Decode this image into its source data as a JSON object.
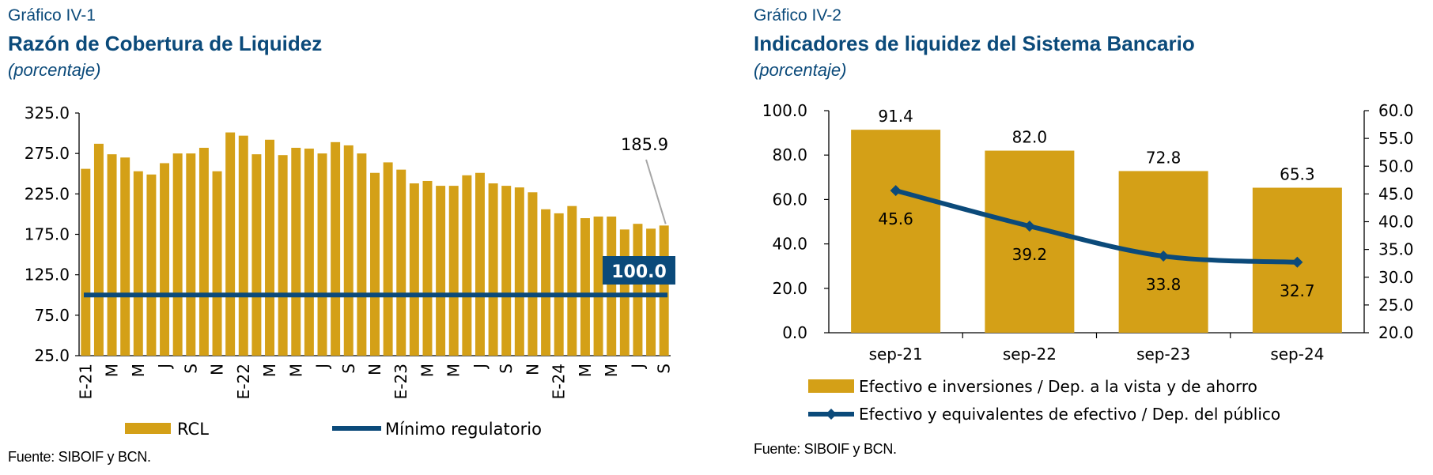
{
  "left": {
    "label": "Gráfico IV-1",
    "title": "Razón de Cobertura de Liquidez",
    "unit": "(porcentaje)",
    "source": "Fuente: SIBOIF y BCN.",
    "chart_data": {
      "type": "bar",
      "ylim": [
        25,
        325
      ],
      "yticks": [
        "325.0",
        "275.0",
        "225.0",
        "175.0",
        "125.0",
        "75.0",
        "25.0"
      ],
      "ytick_values": [
        325,
        275,
        225,
        175,
        125,
        75,
        25
      ],
      "x_tick_labels": [
        "E-21",
        "M",
        "M",
        "J",
        "S",
        "N",
        "E-22",
        "M",
        "M",
        "J",
        "S",
        "N",
        "E-23",
        "M",
        "M",
        "J",
        "S",
        "N",
        "E-24",
        "M",
        "M",
        "J",
        "S"
      ],
      "series": [
        {
          "name": "RCL",
          "type": "bar",
          "color": "#d4a017",
          "values": [
            256,
            287,
            274,
            270,
            253,
            249,
            263,
            275,
            275,
            282,
            253,
            301,
            297,
            274,
            292,
            273,
            282,
            281,
            275,
            289,
            285,
            275,
            251,
            264,
            255,
            238,
            241,
            235,
            235,
            248,
            251,
            238,
            235,
            233,
            227,
            206,
            201,
            210,
            195,
            197,
            197,
            181,
            188,
            182,
            185.9
          ]
        },
        {
          "name": "Mínimo regulatorio",
          "type": "line",
          "color": "#0b4a7a",
          "value": 100
        }
      ],
      "annotations": [
        {
          "text": "185.9",
          "series": "RCL",
          "index": 44
        },
        {
          "text": "100.0",
          "series": "Mínimo regulatorio",
          "style": "boxed"
        }
      ],
      "legend": [
        "RCL",
        "Mínimo regulatorio"
      ],
      "legend_position": "bottom"
    }
  },
  "right": {
    "label": "Gráfico IV-2",
    "title": "Indicadores de liquidez del Sistema Bancario",
    "unit": "(porcentaje)",
    "source": "Fuente: SIBOIF y BCN.",
    "chart_data": {
      "type": "bar",
      "categories": [
        "sep-21",
        "sep-22",
        "sep-23",
        "sep-24"
      ],
      "ylim": [
        0,
        100
      ],
      "yticks": [
        "100.0",
        "80.0",
        "60.0",
        "40.0",
        "20.0",
        "0.0"
      ],
      "ytick_values": [
        100,
        80,
        60,
        40,
        20,
        0
      ],
      "y2lim": [
        20,
        60
      ],
      "y2ticks": [
        "60.0",
        "55.0",
        "50.0",
        "45.0",
        "40.0",
        "35.0",
        "30.0",
        "25.0",
        "20.0"
      ],
      "y2tick_values": [
        60,
        55,
        50,
        45,
        40,
        35,
        30,
        25,
        20
      ],
      "series": [
        {
          "name": "Efectivo e inversiones / Dep. a la vista y de ahorro",
          "type": "bar",
          "axis": "left",
          "color": "#d4a017",
          "values": [
            91.4,
            82.0,
            72.8,
            65.3
          ],
          "labels": [
            "91.4",
            "82.0",
            "72.8",
            "65.3"
          ]
        },
        {
          "name": "Efectivo y equivalentes de efectivo / Dep. del público",
          "type": "line",
          "axis": "right",
          "color": "#0b4a7a",
          "values": [
            45.6,
            39.2,
            33.8,
            32.7
          ],
          "labels": [
            "45.6",
            "39.2",
            "33.8",
            "32.7"
          ]
        }
      ],
      "legend_position": "bottom"
    }
  }
}
